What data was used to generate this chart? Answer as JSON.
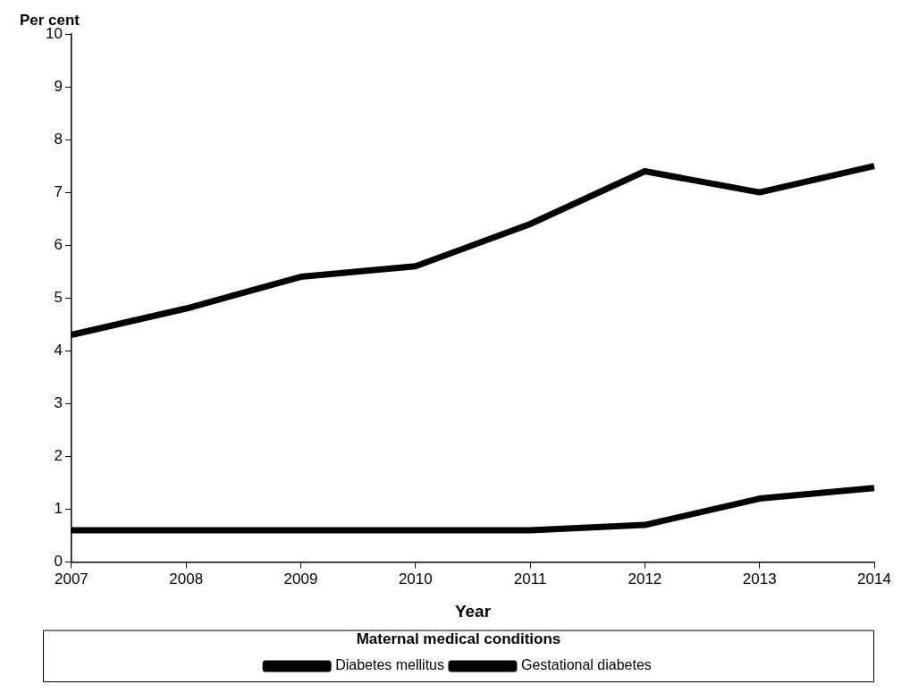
{
  "chart_data": {
    "type": "line",
    "ylabel": "Per cent",
    "xlabel": "Year",
    "legend_title": "Maternal medical conditions",
    "legend": "bottom",
    "marker": "none",
    "line_style": "solid",
    "grid": false,
    "categories": [
      "2007",
      "2008",
      "2009",
      "2010",
      "2011",
      "2012",
      "2013",
      "2014"
    ],
    "ylim": [
      0,
      10
    ],
    "yticks": [
      0,
      1,
      2,
      3,
      4,
      5,
      6,
      7,
      8,
      9,
      10
    ],
    "series": [
      {
        "name": "Diabetes mellitus",
        "color": "#000000",
        "values": [
          0.6,
          0.6,
          0.6,
          0.6,
          0.6,
          0.7,
          1.2,
          1.4
        ]
      },
      {
        "name": "Gestational diabetes",
        "color": "#000000",
        "values": [
          4.3,
          4.8,
          5.4,
          5.6,
          6.4,
          7.4,
          7.0,
          7.5
        ]
      }
    ]
  }
}
